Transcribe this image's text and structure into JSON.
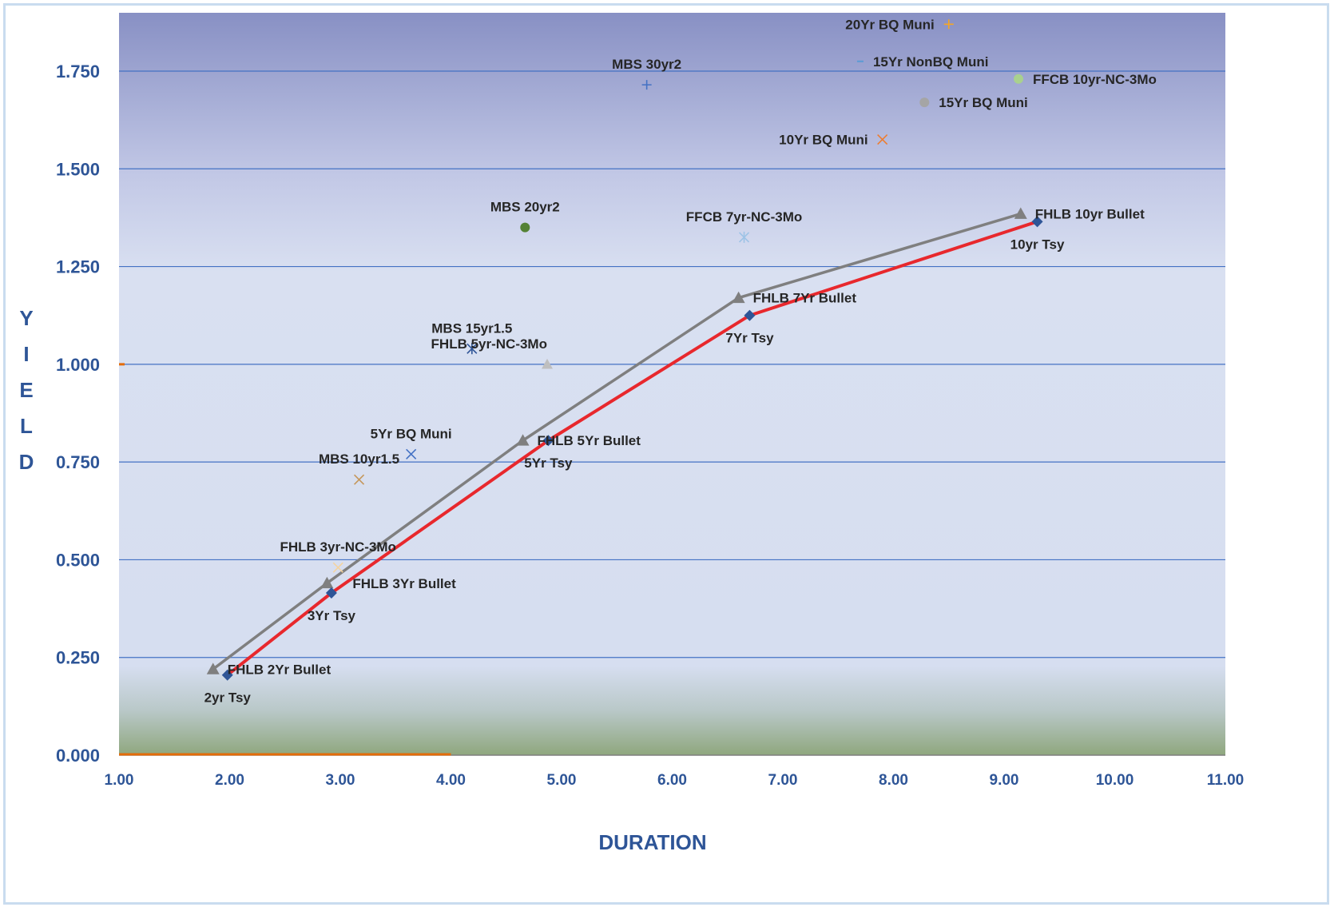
{
  "chart_data": {
    "type": "scatter",
    "title": "",
    "xlabel": "DURATION",
    "ylabel_letters": [
      "Y",
      "I",
      "E",
      "L",
      "D"
    ],
    "xlim": [
      1.0,
      11.0
    ],
    "ylim": [
      0.0,
      1.85
    ],
    "x_ticks": [
      "1.00",
      "2.00",
      "3.00",
      "4.00",
      "5.00",
      "6.00",
      "7.00",
      "8.00",
      "9.00",
      "10.00",
      "11.00"
    ],
    "y_ticks": [
      "0.000",
      "0.250",
      "0.500",
      "0.750",
      "1.000",
      "1.250",
      "1.500",
      "1.750"
    ],
    "grid": "horizontal",
    "lines": [
      {
        "color": "#7f7f7f",
        "marker": "triangle",
        "points": [
          {
            "x": 1.85,
            "y": 0.22,
            "label": "FHLB 2Yr Bullet"
          },
          {
            "x": 2.88,
            "y": 0.44,
            "label": "FHLB 3Yr Bullet"
          },
          {
            "x": 4.65,
            "y": 0.805,
            "label": "FHLB 5Yr Bullet"
          },
          {
            "x": 6.6,
            "y": 1.17,
            "label": "FHLB 7Yr Bullet"
          },
          {
            "x": 9.15,
            "y": 1.385,
            "label": "FHLB 10yr Bullet"
          }
        ]
      },
      {
        "color": "#e8282d",
        "marker": "diamond",
        "marker_color": "#2e5597",
        "points": [
          {
            "x": 1.98,
            "y": 0.205,
            "label": "2yr Tsy"
          },
          {
            "x": 2.92,
            "y": 0.415,
            "label": "3Yr Tsy"
          },
          {
            "x": 4.88,
            "y": 0.805,
            "label": "5Yr Tsy"
          },
          {
            "x": 6.7,
            "y": 1.125,
            "label": "7Yr Tsy"
          },
          {
            "x": 9.3,
            "y": 1.365,
            "label": "10yr Tsy"
          }
        ]
      }
    ],
    "points": [
      {
        "x": 8.5,
        "y": 1.87,
        "label": "20Yr BQ Muni",
        "marker": "plus",
        "color": "#f5a623"
      },
      {
        "x": 7.7,
        "y": 1.775,
        "label": "15Yr NonBQ Muni",
        "marker": "dash",
        "color": "#5b9bd5"
      },
      {
        "x": 5.77,
        "y": 1.715,
        "label": "MBS 30yr2",
        "marker": "plus",
        "color": "#4472c4"
      },
      {
        "x": 9.13,
        "y": 1.73,
        "label": "FFCB 10yr-NC-3Mo",
        "marker": "circle",
        "color": "#a9d18e"
      },
      {
        "x": 8.28,
        "y": 1.67,
        "label": "15Yr BQ Muni",
        "marker": "circle",
        "color": "#a5a5a5"
      },
      {
        "x": 7.9,
        "y": 1.575,
        "label": "10Yr BQ Muni",
        "marker": "x",
        "color": "#ed7d31"
      },
      {
        "x": 4.67,
        "y": 1.35,
        "label": "MBS 20yr2",
        "marker": "circle",
        "color": "#548235"
      },
      {
        "x": 6.65,
        "y": 1.325,
        "label": "FFCB 7yr-NC-3Mo",
        "marker": "asterisk",
        "color": "#9dc3e6"
      },
      {
        "x": 4.19,
        "y": 1.04,
        "label": "MBS 15yr1.5",
        "marker": "asterisk",
        "color": "#2f5597"
      },
      {
        "x": 4.87,
        "y": 1.0,
        "label": "FHLB 5yr-NC-3Mo",
        "marker": "triangle",
        "color": "#bfbfbf"
      },
      {
        "x": 3.64,
        "y": 0.77,
        "label": "5Yr BQ Muni",
        "marker": "x",
        "color": "#4472c4"
      },
      {
        "x": 3.17,
        "y": 0.705,
        "label": "MBS 10yr1.5",
        "marker": "x",
        "color": "#c5975a"
      },
      {
        "x": 2.98,
        "y": 0.48,
        "label": "FHLB 3yr-NC-3Mo",
        "marker": "x",
        "color": "#f4d3a0"
      }
    ],
    "reference_lines": [
      {
        "orientation": "horizontal",
        "y": 0.0,
        "x_from": 1.0,
        "x_to": 4.0,
        "color": "#e36c09"
      }
    ],
    "colors": {
      "plot_bg_top": "#8890c4",
      "plot_bg_mid": "#d9e0f1",
      "plot_bg_bottom": "#8fa77e",
      "grid": "#4472c4",
      "axis_text": "#2e5597",
      "label_text": "#262626"
    }
  }
}
